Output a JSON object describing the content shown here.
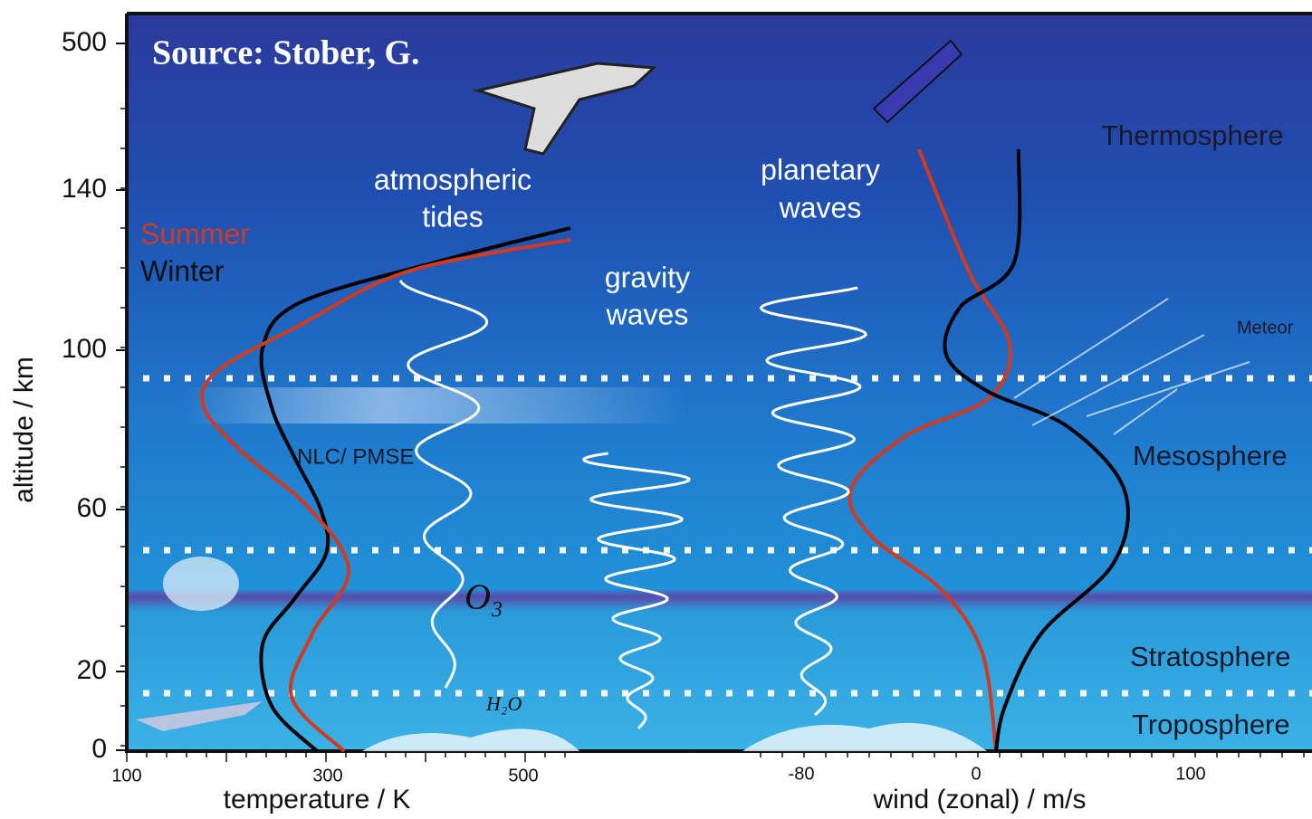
{
  "header": {
    "source": "Source: Stober, G."
  },
  "axes": {
    "y_label": "altitude / km",
    "y_ticks": [
      "500",
      "140",
      "100",
      "60",
      "20",
      "0"
    ],
    "temperature_label": "temperature / K",
    "temperature_ticks": [
      "100",
      "300",
      "500"
    ],
    "wind_label": "wind (zonal) / m/s",
    "wind_ticks": [
      "-80",
      "0",
      "100"
    ]
  },
  "legend": {
    "summer": "Summer",
    "winter": "Winter"
  },
  "labels": {
    "tides": [
      "atmospheric",
      "tides"
    ],
    "gravity": [
      "gravity",
      "waves"
    ],
    "planetary": [
      "planetary",
      "waves"
    ],
    "nlc": "NLC/ PMSE",
    "ozone": "O₃",
    "water": "H₂O",
    "meteor": "Meteor"
  },
  "regions": [
    "Thermosphere",
    "Mesosphere",
    "Stratosphere",
    "Troposphere"
  ]
}
